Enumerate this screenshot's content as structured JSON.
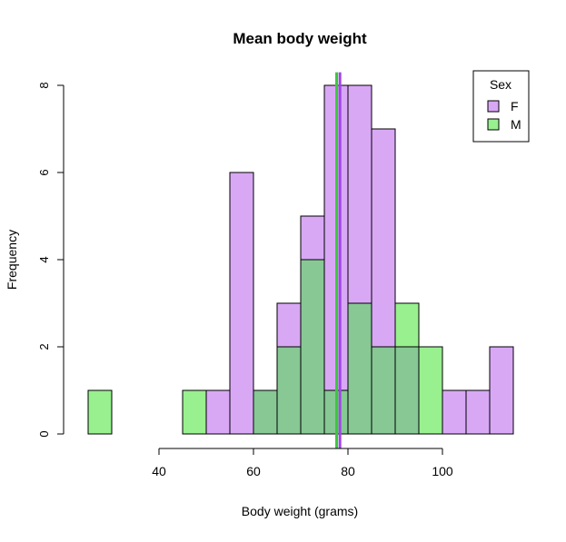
{
  "chart_data": {
    "type": "histogram",
    "title": "Mean body weight",
    "xlabel": "Body weight (grams)",
    "ylabel": "Frequency",
    "xlim": [
      25,
      115
    ],
    "ylim": [
      0,
      8
    ],
    "x_ticks": [
      40,
      60,
      80,
      100
    ],
    "y_ticks": [
      0,
      2,
      4,
      6,
      8
    ],
    "bin_width": 5,
    "bins": [
      25,
      30,
      35,
      40,
      45,
      50,
      55,
      60,
      65,
      70,
      75,
      80,
      85,
      90,
      95,
      100,
      105,
      110,
      115
    ],
    "series": [
      {
        "name": "F",
        "color": "#d8a8f5",
        "counts": [
          0,
          0,
          0,
          0,
          0,
          1,
          6,
          1,
          3,
          5,
          8,
          8,
          7,
          2,
          0,
          1,
          1,
          2
        ]
      },
      {
        "name": "M",
        "color": "#98f08f",
        "counts": [
          1,
          0,
          0,
          0,
          1,
          0,
          0,
          1,
          2,
          4,
          1,
          3,
          2,
          3,
          2,
          0,
          0,
          0
        ]
      }
    ],
    "overlap_color": "#87c895",
    "mean_lines": [
      {
        "series": "F",
        "value": 78.3,
        "color": "#a045e8"
      },
      {
        "series": "M",
        "value": 77.6,
        "color": "#3cc83c"
      }
    ],
    "legend": {
      "title": "Sex",
      "position": "top-right",
      "entries": [
        "F",
        "M"
      ]
    },
    "grid": false
  }
}
